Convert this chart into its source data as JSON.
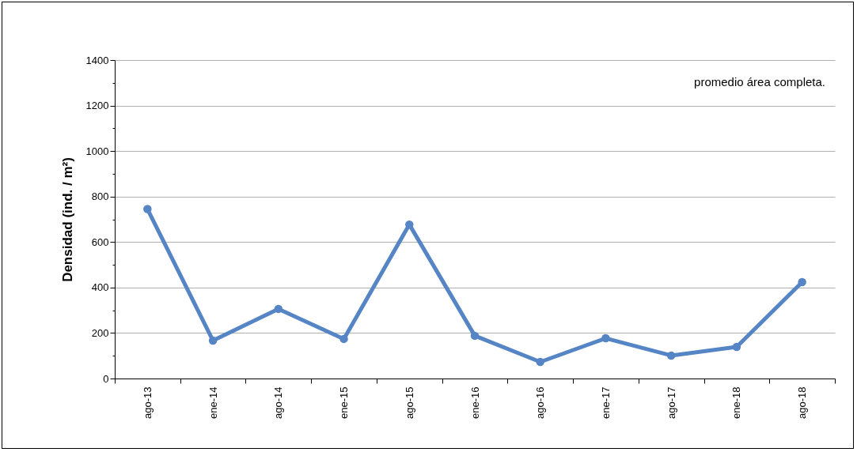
{
  "chart_data": {
    "type": "line",
    "ylabel": "Densidad (ind. / m²)",
    "annotations": [
      "promedio área completa."
    ],
    "categories": [
      "ago-13",
      "ene-14",
      "ago-14",
      "ene-15",
      "ago-15",
      "ene-16",
      "ago-16",
      "ene-17",
      "ago-17",
      "ene-18",
      "ago-18"
    ],
    "series": [
      {
        "color": "#5585c5",
        "values": [
          745,
          167,
          306,
          174,
          677,
          188,
          73,
          177,
          101,
          139,
          424
        ]
      }
    ],
    "ylim": [
      0,
      1400
    ],
    "yticks": [
      0,
      {
        "value": 100,
        "label": null
      },
      200,
      {
        "value": 300,
        "label": null
      },
      400,
      {
        "value": 500,
        "label": null
      },
      600,
      {
        "value": 700,
        "label": null
      },
      800,
      {
        "value": 900,
        "label": null
      },
      1000,
      {
        "value": 1100,
        "label": null
      },
      1200,
      {
        "value": 1300,
        "label": null
      },
      1400
    ],
    "grid": "y",
    "marker": "circle",
    "line_style": "solid",
    "legend": false
  }
}
